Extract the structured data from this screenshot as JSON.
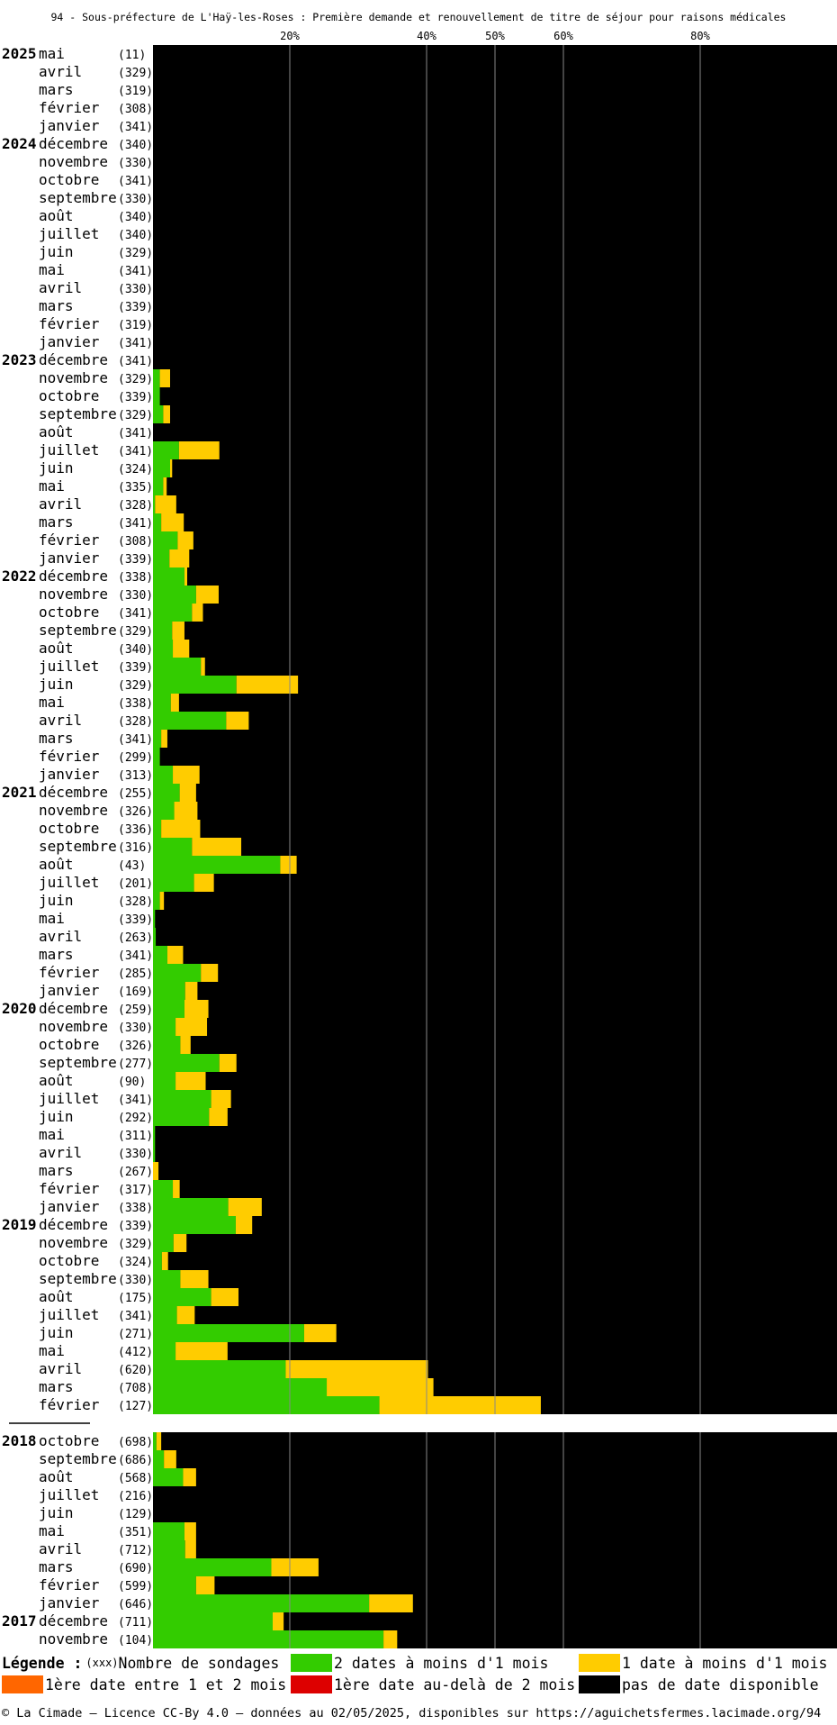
{
  "title": "94 - Sous-préfecture de L'Haÿ-les-Roses : Première demande et renouvellement de titre de séjour pour raisons médicales",
  "colors": {
    "green": "#33cc00",
    "yellow": "#ffcc00",
    "orange": "#ff6600",
    "red": "#dd0000",
    "black": "#000000",
    "gridline": "#888888"
  },
  "legend": {
    "title": "Légende :",
    "count_hint": "(xxx)",
    "count_label": "Nombre de sondages",
    "green": "2 dates à moins d'1 mois",
    "yellow": "1 date à moins d'1 mois",
    "orange": "1ère date entre 1 et 2 mois",
    "red": "1ère date au-delà de 2 mois",
    "black": "pas de date disponible"
  },
  "footer": "© La Cimade — Licence CC-By 4.0 — données au 02/05/2025, disponibles sur https://aguichetsfermes.lacimade.org/94",
  "chart_data": {
    "type": "bar",
    "orientation": "horizontal",
    "stacked": true,
    "unit": "%",
    "xlim": [
      0,
      100
    ],
    "x_ticks": [
      "20%",
      "40%",
      "50%",
      "60%",
      "80%"
    ],
    "x_tick_values": [
      20,
      40,
      50,
      60,
      80
    ],
    "grid": true,
    "groups": [
      {
        "rows": [
          {
            "year": "2025",
            "month": "mai",
            "count": "(11)",
            "green": 0,
            "yellow": 0
          },
          {
            "year": "",
            "month": "avril",
            "count": "(329)",
            "green": 0,
            "yellow": 0
          },
          {
            "year": "",
            "month": "mars",
            "count": "(319)",
            "green": 0,
            "yellow": 0
          },
          {
            "year": "",
            "month": "février",
            "count": "(308)",
            "green": 0,
            "yellow": 0
          },
          {
            "year": "",
            "month": "janvier",
            "count": "(341)",
            "green": 0,
            "yellow": 0
          },
          {
            "year": "2024",
            "month": "décembre",
            "count": "(340)",
            "green": 0,
            "yellow": 0
          },
          {
            "year": "",
            "month": "novembre",
            "count": "(330)",
            "green": 0,
            "yellow": 0
          },
          {
            "year": "",
            "month": "octobre",
            "count": "(341)",
            "green": 0,
            "yellow": 0
          },
          {
            "year": "",
            "month": "septembre",
            "count": "(330)",
            "green": 0,
            "yellow": 0
          },
          {
            "year": "",
            "month": "août",
            "count": "(340)",
            "green": 0,
            "yellow": 0
          },
          {
            "year": "",
            "month": "juillet",
            "count": "(340)",
            "green": 0,
            "yellow": 0
          },
          {
            "year": "",
            "month": "juin",
            "count": "(329)",
            "green": 0,
            "yellow": 0
          },
          {
            "year": "",
            "month": "mai",
            "count": "(341)",
            "green": 0,
            "yellow": 0
          },
          {
            "year": "",
            "month": "avril",
            "count": "(330)",
            "green": 0,
            "yellow": 0
          },
          {
            "year": "",
            "month": "mars",
            "count": "(339)",
            "green": 0,
            "yellow": 0
          },
          {
            "year": "",
            "month": "février",
            "count": "(319)",
            "green": 0,
            "yellow": 0
          },
          {
            "year": "",
            "month": "janvier",
            "count": "(341)",
            "green": 0,
            "yellow": 0
          },
          {
            "year": "2023",
            "month": "décembre",
            "count": "(341)",
            "green": 0,
            "yellow": 0
          },
          {
            "year": "",
            "month": "novembre",
            "count": "(329)",
            "green": 1.0,
            "yellow": 1.5
          },
          {
            "year": "",
            "month": "octobre",
            "count": "(339)",
            "green": 1.0,
            "yellow": 0
          },
          {
            "year": "",
            "month": "septembre",
            "count": "(329)",
            "green": 1.5,
            "yellow": 1.0
          },
          {
            "year": "",
            "month": "août",
            "count": "(341)",
            "green": 0,
            "yellow": 0
          },
          {
            "year": "",
            "month": "juillet",
            "count": "(341)",
            "green": 3.8,
            "yellow": 5.9
          },
          {
            "year": "",
            "month": "juin",
            "count": "(324)",
            "green": 2.5,
            "yellow": 0.3
          },
          {
            "year": "",
            "month": "mai",
            "count": "(335)",
            "green": 1.5,
            "yellow": 0.5
          },
          {
            "year": "",
            "month": "avril",
            "count": "(328)",
            "green": 0.3,
            "yellow": 3.1
          },
          {
            "year": "",
            "month": "mars",
            "count": "(341)",
            "green": 1.2,
            "yellow": 3.3
          },
          {
            "year": "",
            "month": "février",
            "count": "(308)",
            "green": 3.6,
            "yellow": 2.3
          },
          {
            "year": "",
            "month": "janvier",
            "count": "(339)",
            "green": 2.4,
            "yellow": 2.9
          },
          {
            "year": "2022",
            "month": "décembre",
            "count": "(338)",
            "green": 4.6,
            "yellow": 0.4
          },
          {
            "year": "",
            "month": "novembre",
            "count": "(330)",
            "green": 6.3,
            "yellow": 3.3
          },
          {
            "year": "",
            "month": "octobre",
            "count": "(341)",
            "green": 5.7,
            "yellow": 1.6
          },
          {
            "year": "",
            "month": "septembre",
            "count": "(329)",
            "green": 2.8,
            "yellow": 1.8
          },
          {
            "year": "",
            "month": "août",
            "count": "(340)",
            "green": 2.9,
            "yellow": 2.4
          },
          {
            "year": "",
            "month": "juillet",
            "count": "(339)",
            "green": 7.0,
            "yellow": 0.6
          },
          {
            "year": "",
            "month": "juin",
            "count": "(329)",
            "green": 12.2,
            "yellow": 9.0
          },
          {
            "year": "",
            "month": "mai",
            "count": "(338)",
            "green": 2.6,
            "yellow": 1.2
          },
          {
            "year": "",
            "month": "avril",
            "count": "(328)",
            "green": 10.7,
            "yellow": 3.3
          },
          {
            "year": "",
            "month": "mars",
            "count": "(341)",
            "green": 1.2,
            "yellow": 0.9
          },
          {
            "year": "",
            "month": "février",
            "count": "(299)",
            "green": 1.0,
            "yellow": 0
          },
          {
            "year": "",
            "month": "janvier",
            "count": "(313)",
            "green": 2.9,
            "yellow": 3.9
          },
          {
            "year": "2021",
            "month": "décembre",
            "count": "(255)",
            "green": 3.9,
            "yellow": 2.4
          },
          {
            "year": "",
            "month": "novembre",
            "count": "(326)",
            "green": 3.1,
            "yellow": 3.4
          },
          {
            "year": "",
            "month": "octobre",
            "count": "(336)",
            "green": 1.2,
            "yellow": 5.7
          },
          {
            "year": "",
            "month": "septembre",
            "count": "(316)",
            "green": 5.7,
            "yellow": 7.2
          },
          {
            "year": "",
            "month": "août",
            "count": "(43)",
            "green": 18.6,
            "yellow": 2.4
          },
          {
            "year": "",
            "month": "juillet",
            "count": "(201)",
            "green": 6.0,
            "yellow": 2.9
          },
          {
            "year": "",
            "month": "juin",
            "count": "(328)",
            "green": 1.0,
            "yellow": 0.6
          },
          {
            "year": "",
            "month": "mai",
            "count": "(339)",
            "green": 0.3,
            "yellow": 0
          },
          {
            "year": "",
            "month": "avril",
            "count": "(263)",
            "green": 0.4,
            "yellow": 0
          },
          {
            "year": "",
            "month": "mars",
            "count": "(341)",
            "green": 2.1,
            "yellow": 2.3
          },
          {
            "year": "",
            "month": "février",
            "count": "(285)",
            "green": 7.0,
            "yellow": 2.5
          },
          {
            "year": "",
            "month": "janvier",
            "count": "(169)",
            "green": 4.7,
            "yellow": 1.8
          },
          {
            "year": "2020",
            "month": "décembre",
            "count": "(259)",
            "green": 4.6,
            "yellow": 3.5
          },
          {
            "year": "",
            "month": "novembre",
            "count": "(330)",
            "green": 3.3,
            "yellow": 4.6
          },
          {
            "year": "",
            "month": "octobre",
            "count": "(326)",
            "green": 4.0,
            "yellow": 1.5
          },
          {
            "year": "",
            "month": "septembre",
            "count": "(277)",
            "green": 9.7,
            "yellow": 2.5
          },
          {
            "year": "",
            "month": "août",
            "count": "(90)",
            "green": 3.3,
            "yellow": 4.4
          },
          {
            "year": "",
            "month": "juillet",
            "count": "(341)",
            "green": 8.5,
            "yellow": 2.9
          },
          {
            "year": "",
            "month": "juin",
            "count": "(292)",
            "green": 8.2,
            "yellow": 2.7
          },
          {
            "year": "",
            "month": "mai",
            "count": "(311)",
            "green": 0.3,
            "yellow": 0
          },
          {
            "year": "",
            "month": "avril",
            "count": "(330)",
            "green": 0.3,
            "yellow": 0
          },
          {
            "year": "",
            "month": "mars",
            "count": "(267)",
            "green": 0,
            "yellow": 0.8
          },
          {
            "year": "",
            "month": "février",
            "count": "(317)",
            "green": 2.9,
            "yellow": 1.0
          },
          {
            "year": "",
            "month": "janvier",
            "count": "(338)",
            "green": 11.0,
            "yellow": 4.9
          },
          {
            "year": "2019",
            "month": "décembre",
            "count": "(339)",
            "green": 12.1,
            "yellow": 2.4
          },
          {
            "year": "",
            "month": "novembre",
            "count": "(329)",
            "green": 3.0,
            "yellow": 1.9
          },
          {
            "year": "",
            "month": "octobre",
            "count": "(324)",
            "green": 1.3,
            "yellow": 0.9
          },
          {
            "year": "",
            "month": "septembre",
            "count": "(330)",
            "green": 4.0,
            "yellow": 4.1
          },
          {
            "year": "",
            "month": "août",
            "count": "(175)",
            "green": 8.5,
            "yellow": 4.0
          },
          {
            "year": "",
            "month": "juillet",
            "count": "(341)",
            "green": 3.5,
            "yellow": 2.6
          },
          {
            "year": "",
            "month": "juin",
            "count": "(271)",
            "green": 22.1,
            "yellow": 4.7
          },
          {
            "year": "",
            "month": "mai",
            "count": "(412)",
            "green": 3.3,
            "yellow": 7.6
          },
          {
            "year": "",
            "month": "avril",
            "count": "(620)",
            "green": 19.4,
            "yellow": 20.8
          },
          {
            "year": "",
            "month": "mars",
            "count": "(708)",
            "green": 25.4,
            "yellow": 15.6
          },
          {
            "year": "",
            "month": "février",
            "count": "(127)",
            "green": 33.1,
            "yellow": 23.6
          }
        ]
      },
      {
        "rows": [
          {
            "year": "2018",
            "month": "octobre",
            "count": "(698)",
            "green": 0.5,
            "yellow": 0.7
          },
          {
            "year": "",
            "month": "septembre",
            "count": "(686)",
            "green": 1.6,
            "yellow": 1.8
          },
          {
            "year": "",
            "month": "août",
            "count": "(568)",
            "green": 4.4,
            "yellow": 1.9
          },
          {
            "year": "",
            "month": "juillet",
            "count": "(216)",
            "green": 0,
            "yellow": 0
          },
          {
            "year": "",
            "month": "juin",
            "count": "(129)",
            "green": 0,
            "yellow": 0
          },
          {
            "year": "",
            "month": "mai",
            "count": "(351)",
            "green": 4.6,
            "yellow": 1.7
          },
          {
            "year": "",
            "month": "avril",
            "count": "(712)",
            "green": 4.7,
            "yellow": 1.6
          },
          {
            "year": "",
            "month": "mars",
            "count": "(690)",
            "green": 17.3,
            "yellow": 6.9
          },
          {
            "year": "",
            "month": "février",
            "count": "(599)",
            "green": 6.3,
            "yellow": 2.7
          },
          {
            "year": "",
            "month": "janvier",
            "count": "(646)",
            "green": 31.6,
            "yellow": 6.4
          },
          {
            "year": "2017",
            "month": "décembre",
            "count": "(711)",
            "green": 17.5,
            "yellow": 1.6
          },
          {
            "year": "",
            "month": "novembre",
            "count": "(104)",
            "green": 33.7,
            "yellow": 2.0
          }
        ]
      }
    ]
  }
}
